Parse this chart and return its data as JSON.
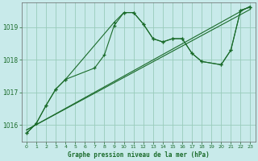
{
  "title": "Graphe pression niveau de la mer (hPa)",
  "background_color": "#c8eaea",
  "plot_bg_color": "#c8eaea",
  "grid_color": "#99ccbb",
  "line_color": "#1a6b2a",
  "xlim": [
    -0.5,
    23.5
  ],
  "ylim": [
    1015.5,
    1019.75
  ],
  "yticks": [
    1016,
    1017,
    1018,
    1019
  ],
  "xticks": [
    0,
    1,
    2,
    3,
    4,
    5,
    6,
    7,
    8,
    9,
    10,
    11,
    12,
    13,
    14,
    15,
    16,
    17,
    18,
    19,
    20,
    21,
    22,
    23
  ],
  "line1_x": [
    0,
    23
  ],
  "line1_y": [
    1015.85,
    1019.65
  ],
  "line2_x": [
    0,
    23
  ],
  "line2_y": [
    1015.85,
    1019.55
  ],
  "series1_x": [
    0,
    1,
    2,
    3,
    4,
    9,
    10,
    11,
    12,
    13,
    14,
    15,
    16,
    17,
    18,
    20,
    21,
    22,
    23
  ],
  "series1_y": [
    1015.75,
    1016.05,
    1016.6,
    1017.1,
    1017.4,
    1019.15,
    1019.45,
    1019.45,
    1019.1,
    1018.65,
    1018.55,
    1018.65,
    1018.65,
    1018.2,
    1017.95,
    1017.85,
    1018.3,
    1019.52,
    1019.62
  ],
  "series2_x": [
    0,
    1,
    2,
    3,
    4,
    7,
    8,
    9,
    10,
    11,
    12,
    13,
    14,
    15,
    16,
    17,
    18,
    20,
    21,
    22,
    23
  ],
  "series2_y": [
    1015.75,
    1016.05,
    1016.6,
    1017.1,
    1017.4,
    1017.75,
    1018.15,
    1019.05,
    1019.45,
    1019.45,
    1019.1,
    1018.65,
    1018.55,
    1018.65,
    1018.65,
    1018.2,
    1017.95,
    1017.85,
    1018.3,
    1019.52,
    1019.62
  ]
}
